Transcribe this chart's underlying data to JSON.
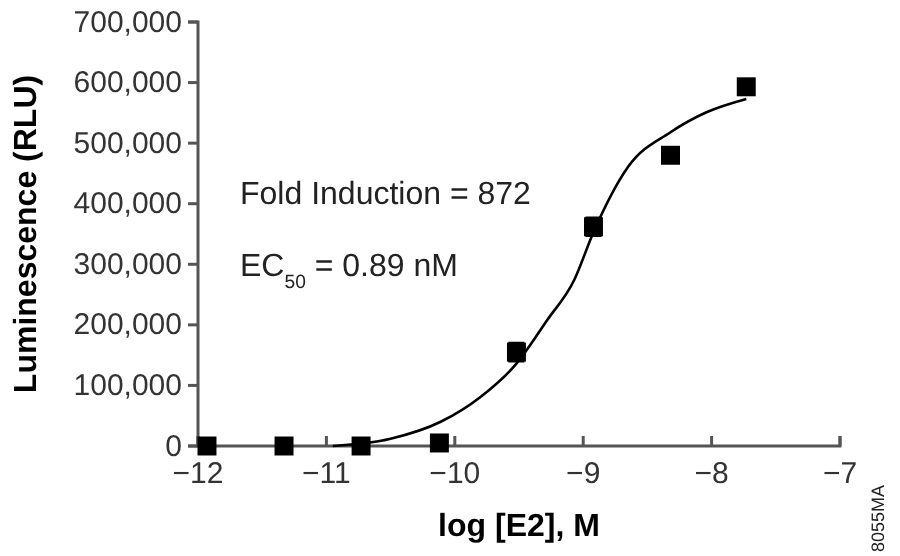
{
  "chart_data": {
    "type": "scatter",
    "xlabel": "log [E2], M",
    "ylabel": "Luminescence (RLU)",
    "xlim": [
      -12,
      -7
    ],
    "ylim": [
      0,
      700000
    ],
    "xticks": [
      {
        "value": -12,
        "label": "−12"
      },
      {
        "value": -11,
        "label": "−11"
      },
      {
        "value": -10,
        "label": "−10"
      },
      {
        "value": -9,
        "label": "−9"
      },
      {
        "value": -8,
        "label": "−8"
      },
      {
        "value": -7,
        "label": "−7"
      }
    ],
    "yticks": [
      0,
      {
        "value": 100000,
        "label": "100,000"
      },
      {
        "value": 200000,
        "label": "200,000"
      },
      {
        "value": 300000,
        "label": "300,000"
      },
      {
        "value": 400000,
        "label": "400,000"
      },
      {
        "value": 500000,
        "label": "500,000"
      },
      {
        "value": 600000,
        "label": "600,000"
      },
      {
        "value": 700000,
        "label": "700,000"
      }
    ],
    "grid": false,
    "series": [
      {
        "type": "line",
        "color": "#000000",
        "marker": "none",
        "line_style": "solid",
        "x": [
          -10.95,
          -10.5,
          -10.11,
          -9.8,
          -9.52,
          -9.28,
          -9.07,
          -8.92,
          -8.65,
          -8.32,
          -8.04,
          -7.73
        ],
        "values": [
          0,
          12000,
          40000,
          81000,
          136000,
          208000,
          274000,
          353000,
          461000,
          518000,
          551000,
          573000
        ]
      },
      {
        "color": "#000000",
        "marker": "square",
        "x": [
          -11.93,
          -11.33,
          -10.73,
          -10.12,
          -9.52,
          -8.92,
          -8.32,
          -7.73
        ],
        "values": [
          0,
          0,
          0,
          5000,
          155000,
          362000,
          480000,
          593000
        ],
        "errors": [
          null,
          null,
          null,
          null,
          15000,
          15000,
          null,
          null
        ]
      }
    ],
    "annotations": [
      "Fold Induction = 872",
      "EC$_{50}$ = 0.89 nM",
      "8055MA"
    ]
  }
}
